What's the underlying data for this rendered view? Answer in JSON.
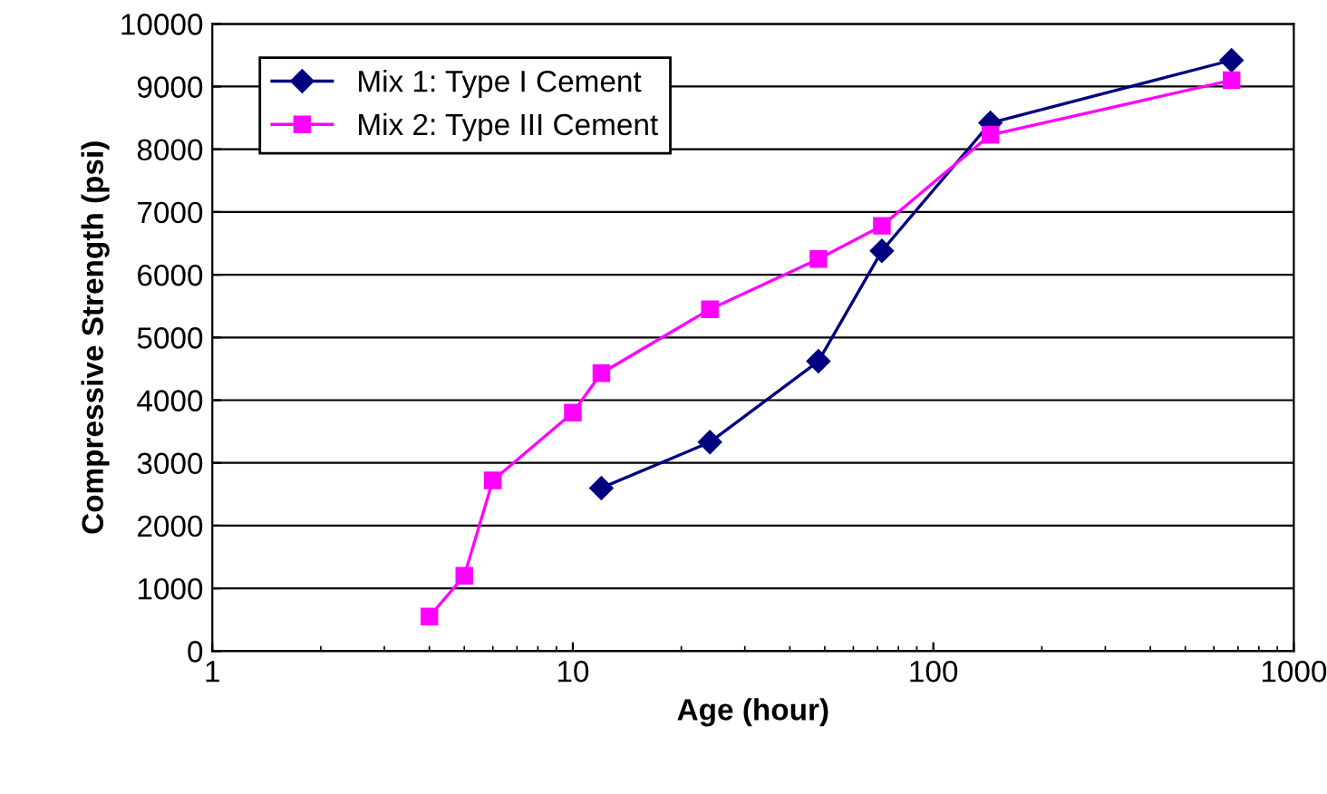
{
  "chart_data": {
    "type": "line",
    "xlabel": "Age (hour)",
    "ylabel": "Compressive Strength (psi)",
    "log": "x",
    "xlim": [
      1,
      1000
    ],
    "xticks": [
      1,
      10,
      100,
      1000
    ],
    "ylim": [
      0,
      10000
    ],
    "yticks": [
      0,
      1000,
      2000,
      3000,
      4000,
      5000,
      6000,
      7000,
      8000,
      9000,
      10000
    ],
    "grid": "y",
    "legend": "top left",
    "line_style": "solid",
    "series": [
      {
        "name": "Mix 1: Type I Cement",
        "color": "#000080",
        "marker": "diamond",
        "x": [
          12,
          24,
          48,
          72,
          144,
          672
        ],
        "values": [
          2600,
          3330,
          4620,
          6380,
          8420,
          9420
        ]
      },
      {
        "name": "Mix 2: Type III Cement",
        "color": "#ff00ff",
        "marker": "square",
        "x": [
          4,
          5,
          6,
          10,
          12,
          24,
          48,
          72,
          144,
          672
        ],
        "values": [
          550,
          1200,
          2720,
          3800,
          4430,
          5450,
          6250,
          6780,
          8230,
          9100
        ]
      }
    ]
  }
}
